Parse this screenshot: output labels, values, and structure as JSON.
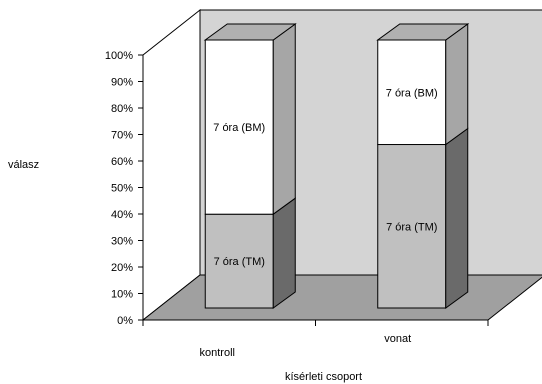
{
  "chart_data": {
    "type": "bar",
    "stacked": true,
    "percent": true,
    "three_d": true,
    "categories": [
      "kontroll",
      "vonat"
    ],
    "series": [
      {
        "name": "7 óra (TM)",
        "values": [
          35,
          61
        ],
        "color": "#c0c0c0"
      },
      {
        "name": "7 óra (BM)",
        "values": [
          65,
          39
        ],
        "color": "#ffffff"
      }
    ],
    "xlabel": "kísérleti csoport",
    "ylabel": "válasz",
    "ylim": [
      0,
      100
    ],
    "yticks": [
      "0%",
      "10%",
      "20%",
      "30%",
      "40%",
      "50%",
      "60%",
      "70%",
      "80%",
      "90%",
      "100%"
    ],
    "grid": false,
    "legend": "none",
    "colors": {
      "back_wall": "#d4d4d4",
      "floor": "#a0a0a0",
      "side_wall": "#ffffff",
      "bar_side_top": "#a6a6a6",
      "bar_side_bottom": "#6a6a6a",
      "bar_top_face": "#b0b0b0"
    }
  }
}
